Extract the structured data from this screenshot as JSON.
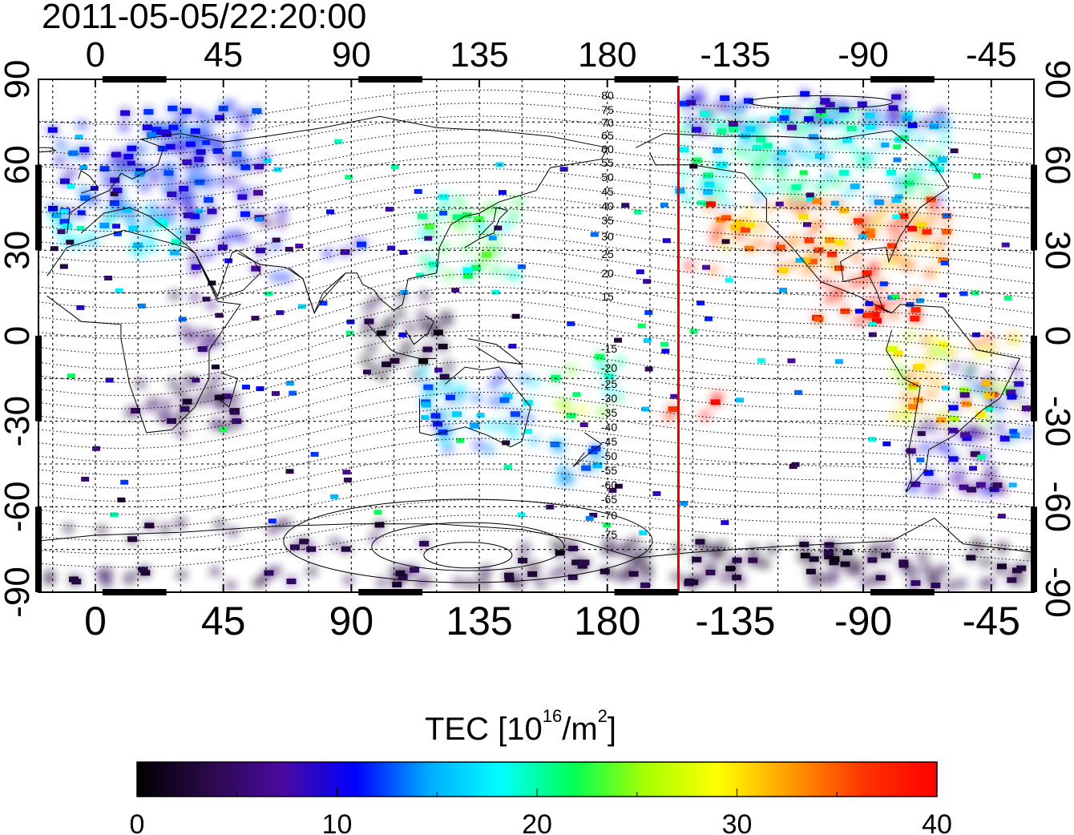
{
  "title": "2011-05-05/22:20:00",
  "map": {
    "x_ticks": [
      {
        "label": "0",
        "lon": 0
      },
      {
        "label": "45",
        "lon": 45
      },
      {
        "label": "90",
        "lon": 90
      },
      {
        "label": "135",
        "lon": 135
      },
      {
        "label": "180",
        "lon": 180
      },
      {
        "label": "-135",
        "lon": 225
      },
      {
        "label": "-90",
        "lon": 270
      },
      {
        "label": "-45",
        "lon": 315
      }
    ],
    "y_ticks": [
      {
        "label": "90",
        "lat": 90
      },
      {
        "label": "60",
        "lat": 60
      },
      {
        "label": "30",
        "lat": 30
      },
      {
        "label": "0",
        "lat": 0
      },
      {
        "label": "-30",
        "lat": -30
      },
      {
        "label": "-60",
        "lat": -60
      },
      {
        "label": "-90",
        "lat": -90
      }
    ],
    "lon_range": [
      -20,
      330
    ],
    "lat_range": [
      -90,
      90
    ],
    "terminator_lon": 205,
    "terminator_color": "#e00000",
    "contour_labels_north": [
      "80",
      "75",
      "70",
      "65",
      "60",
      "55",
      "50",
      "45",
      "40",
      "35",
      "30",
      "25",
      "20",
      "15"
    ],
    "contour_labels_south": [
      "-15",
      "-20",
      "-25",
      "-30",
      "-35",
      "-40",
      "-45",
      "-50",
      "-55",
      "-60",
      "-65",
      "-70",
      "-75"
    ]
  },
  "colorbar": {
    "title_main": "TEC  [10",
    "title_exp": "16",
    "title_unit": "/m",
    "title_unit_exp": "2",
    "title_close": "]",
    "min": 0,
    "max": 40,
    "tick_labels": [
      "0",
      "10",
      "20",
      "30",
      "40"
    ],
    "colors": [
      "#000000",
      "#2a0a4a",
      "#4a0aa0",
      "#0000ff",
      "#00aaff",
      "#00ffff",
      "#00ff55",
      "#aaff00",
      "#ffff00",
      "#ff9900",
      "#ff3300",
      "#ff0000"
    ]
  }
}
